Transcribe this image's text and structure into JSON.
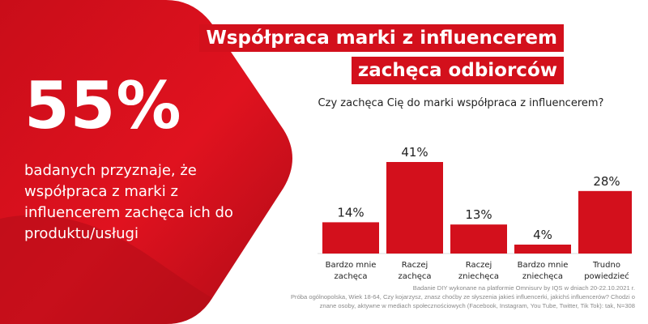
{
  "colors": {
    "accent": "#d3101c",
    "accent_dark": "#b00d18",
    "text": "#222222",
    "muted": "#8a8a8a"
  },
  "headline": {
    "stat": "55%",
    "description": "badanych przyznaje, że współpraca z marki z influencerem zachęca ich do produktu/usługi"
  },
  "title": {
    "line1": "Współpraca marki z influencerem",
    "line2": "zachęca odbiorców"
  },
  "question": "Czy zachęca Cię do marki współpraca z influencerem?",
  "chart_data": {
    "type": "bar",
    "categories": [
      "Bardzo mnie zachęca",
      "Raczej zachęca",
      "Raczej zniechęca",
      "Bardzo mnie zniechęca",
      "Trudno powiedzieć"
    ],
    "category_lines": [
      [
        "Bardzo mnie",
        "zachęca"
      ],
      [
        "Raczej",
        "zachęca"
      ],
      [
        "Raczej",
        "zniechęca"
      ],
      [
        "Bardzo mnie",
        "zniechęca"
      ],
      [
        "Trudno",
        "powiedzieć"
      ]
    ],
    "values": [
      14,
      41,
      13,
      4,
      28
    ],
    "value_labels": [
      "14%",
      "41%",
      "13%",
      "4%",
      "28%"
    ],
    "ylim": [
      0,
      41
    ],
    "grid": false,
    "legend": "none"
  },
  "source": {
    "line1": "Badanie DIY wykonane na platformie Omnisurv by IQS w dniach 20-22.10.2021 r.",
    "line2": "Próba ogólnopolska, Wiek 18-64, Czy kojarzysz, znasz choćby ze słyszenia jakieś influencerki, jakichś influencerów? Chodzi o",
    "line3": "znane osoby, aktywne w mediach społecznościowych (Facebook, Instagram, You Tube, Twitter, Tik Tok): tak, N=308"
  }
}
